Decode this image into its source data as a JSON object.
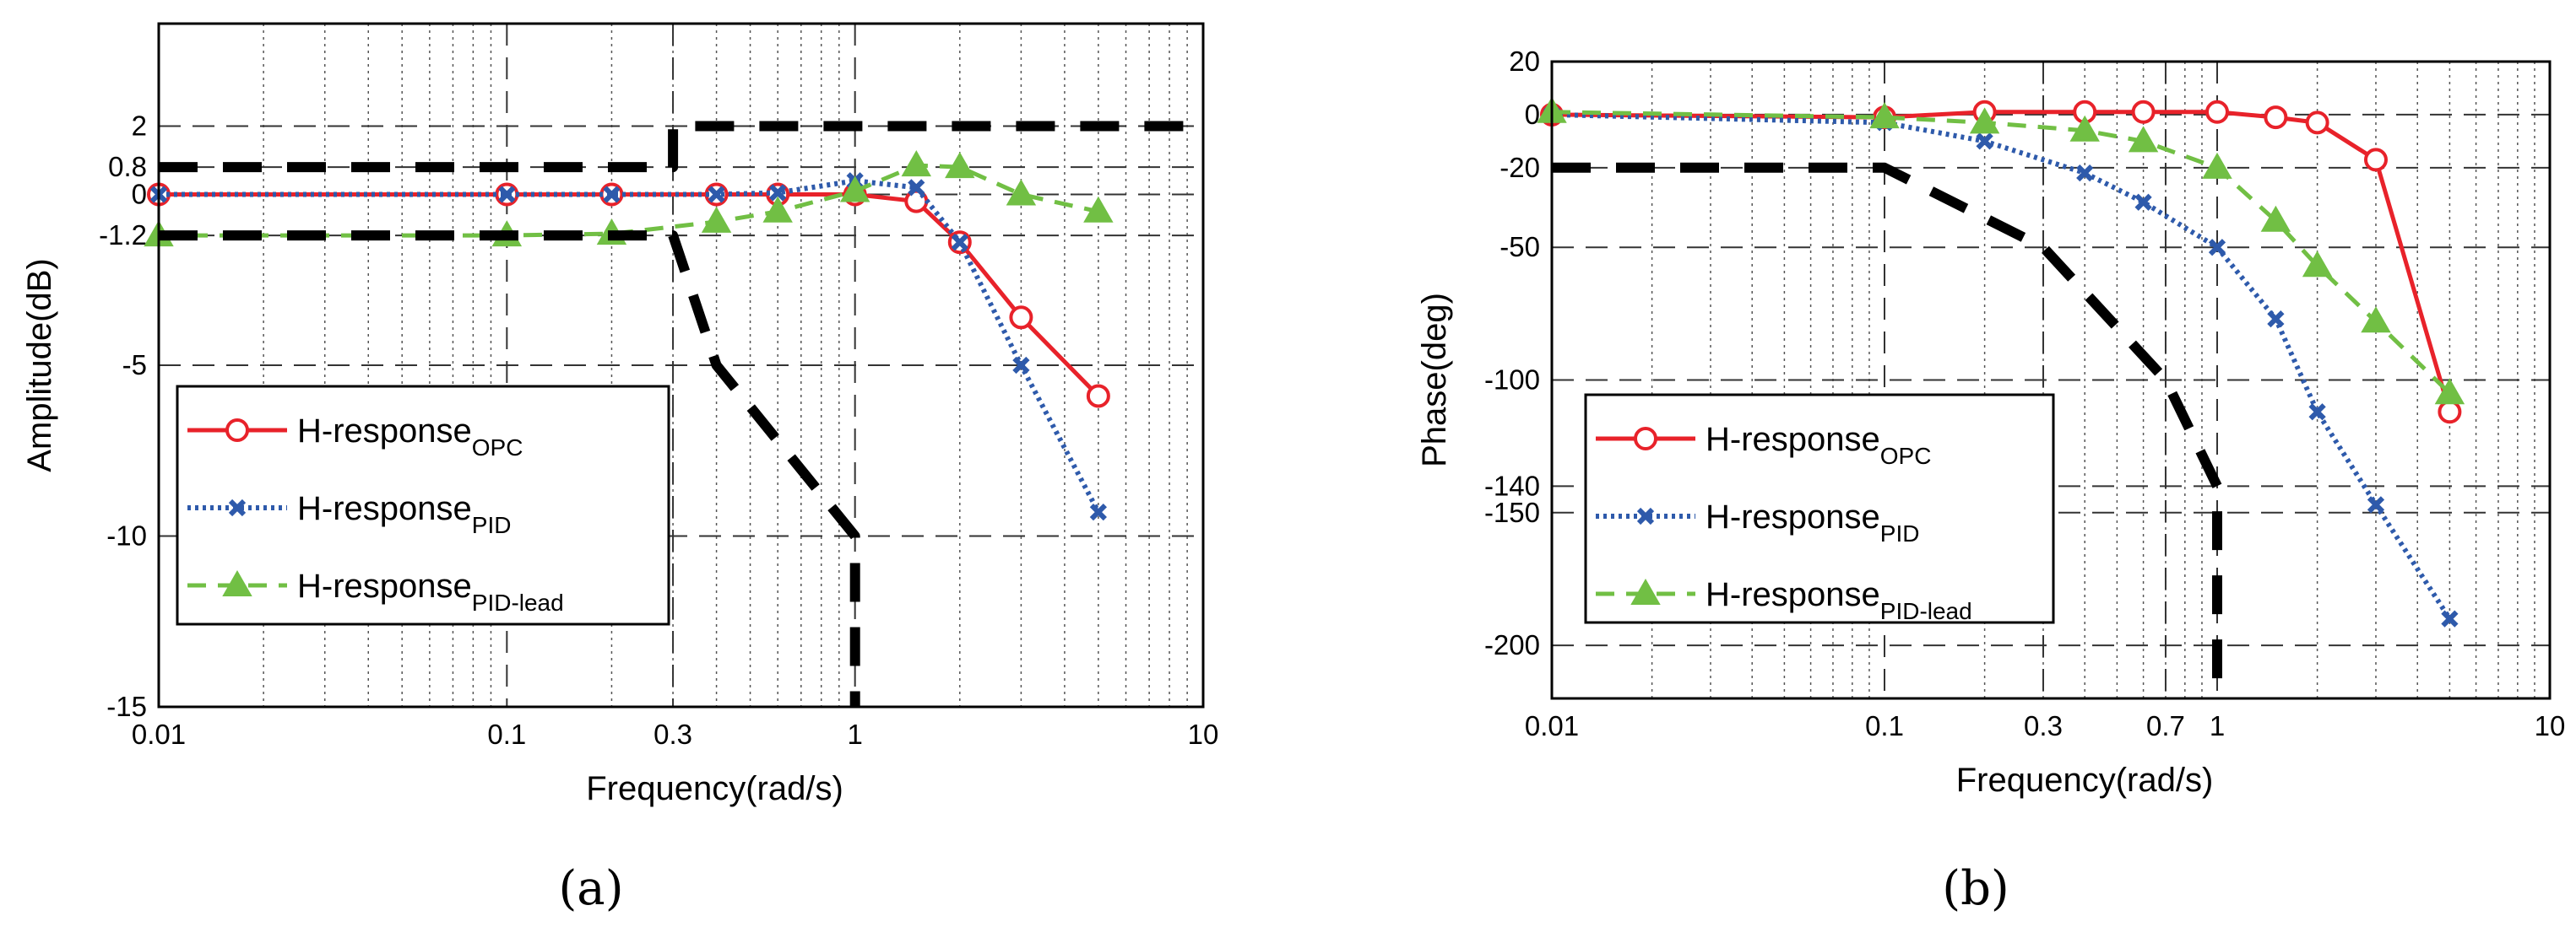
{
  "colors": {
    "opc": "#e8222a",
    "pid": "#2e5aab",
    "pidlead": "#71bf44",
    "ref": "#000000"
  },
  "chart_data": [
    {
      "type": "line",
      "panel": "(a)",
      "xlabel": "Frequency(rad/s)",
      "ylabel": "Amplitude(dB)",
      "xscale": "log",
      "xlim": [
        0.01,
        10
      ],
      "ylim": [
        -15,
        5
      ],
      "xticks": [
        0.01,
        0.1,
        0.3,
        1,
        10
      ],
      "xtick_labels": [
        "0.01",
        "0.1",
        "0.3",
        "1",
        "10"
      ],
      "yticks": [
        2,
        0.8,
        0,
        -1.2,
        -5,
        -10,
        -15
      ],
      "ytick_labels": [
        "2",
        "0.8",
        "0",
        "-1.2",
        "-5",
        "-10",
        "-15"
      ],
      "grid": true,
      "legend_position": "lower-left",
      "series": [
        {
          "name": "H-response",
          "subscript": "OPC",
          "style": "solid",
          "marker": "circle",
          "color_key": "opc",
          "x": [
            0.01,
            0.1,
            0.2,
            0.4,
            0.6,
            1.0,
            1.5,
            2.0,
            3.0,
            5.0
          ],
          "y": [
            0,
            0,
            0,
            0,
            0,
            0,
            -0.2,
            -1.4,
            -3.6,
            -5.9
          ]
        },
        {
          "name": "H-response",
          "subscript": "PID",
          "style": "dotted",
          "marker": "x",
          "color_key": "pid",
          "x": [
            0.01,
            0.1,
            0.2,
            0.4,
            0.6,
            1.0,
            1.5,
            2.0,
            3.0,
            5.0
          ],
          "y": [
            0,
            0,
            0,
            0,
            0.05,
            0.4,
            0.2,
            -1.4,
            -5.0,
            -9.3
          ]
        },
        {
          "name": "H-response",
          "subscript": "PID-lead",
          "style": "dashed",
          "marker": "triangle",
          "color_key": "pidlead",
          "x": [
            0.01,
            0.1,
            0.2,
            0.4,
            0.6,
            1.0,
            1.5,
            2.0,
            3.0,
            5.0
          ],
          "y": [
            -1.2,
            -1.2,
            -1.15,
            -0.8,
            -0.5,
            0.1,
            0.85,
            0.8,
            0.0,
            -0.5
          ]
        },
        {
          "name": "boundary",
          "style": "dashed-thick",
          "color_key": "ref",
          "segments": [
            {
              "x": [
                0.01,
                0.3,
                0.3,
                10
              ],
              "y": [
                0.8,
                0.8,
                2,
                2
              ]
            },
            {
              "x": [
                0.01,
                0.3,
                0.4,
                1,
                1
              ],
              "y": [
                -1.2,
                -1.2,
                -5,
                -10,
                -15
              ]
            }
          ]
        }
      ]
    },
    {
      "type": "line",
      "panel": "(b)",
      "xlabel": "Frequency(rad/s)",
      "ylabel": "Phase(deg)",
      "xscale": "log",
      "xlim": [
        0.01,
        10
      ],
      "ylim": [
        -220,
        20
      ],
      "xticks": [
        0.01,
        0.1,
        0.3,
        0.7,
        1,
        10
      ],
      "xtick_labels": [
        "0.01",
        "0.1",
        "0.3",
        "0.7",
        "1",
        "10"
      ],
      "yticks": [
        20,
        0,
        -20,
        -50,
        -100,
        -140,
        -150,
        -200
      ],
      "ytick_labels": [
        "20",
        "0",
        "-20",
        "-50",
        "-100",
        "-140",
        "-150",
        "-200"
      ],
      "grid": true,
      "legend_position": "lower-left",
      "series": [
        {
          "name": "H-response",
          "subscript": "OPC",
          "style": "solid",
          "marker": "circle",
          "color_key": "opc",
          "x": [
            0.01,
            0.1,
            0.2,
            0.4,
            0.6,
            1.0,
            1.5,
            2.0,
            3.0,
            5.0
          ],
          "y": [
            0,
            -1,
            1,
            1,
            1,
            1,
            -1,
            -3,
            -17,
            -112
          ]
        },
        {
          "name": "H-response",
          "subscript": "PID",
          "style": "dotted",
          "marker": "x",
          "color_key": "pid",
          "x": [
            0.01,
            0.1,
            0.2,
            0.4,
            0.6,
            1.0,
            1.5,
            2.0,
            3.0,
            5.0
          ],
          "y": [
            0,
            -3,
            -10,
            -22,
            -33,
            -50,
            -77,
            -112,
            -147,
            -190
          ]
        },
        {
          "name": "H-response",
          "subscript": "PID-lead",
          "style": "dashed",
          "marker": "triangle",
          "color_key": "pidlead",
          "x": [
            0.01,
            0.1,
            0.2,
            0.4,
            0.6,
            1.0,
            1.5,
            2.0,
            3.0,
            5.0
          ],
          "y": [
            1,
            -1,
            -3,
            -6,
            -10,
            -20,
            -40,
            -57,
            -78,
            -105
          ]
        },
        {
          "name": "boundary",
          "style": "dashed-thick",
          "color_key": "ref",
          "segments": [
            {
              "x": [
                0.01,
                0.1,
                0.3,
                0.7,
                1,
                1
              ],
              "y": [
                -20,
                -20,
                -50,
                -100,
                -140,
                -220
              ]
            }
          ]
        }
      ]
    }
  ]
}
